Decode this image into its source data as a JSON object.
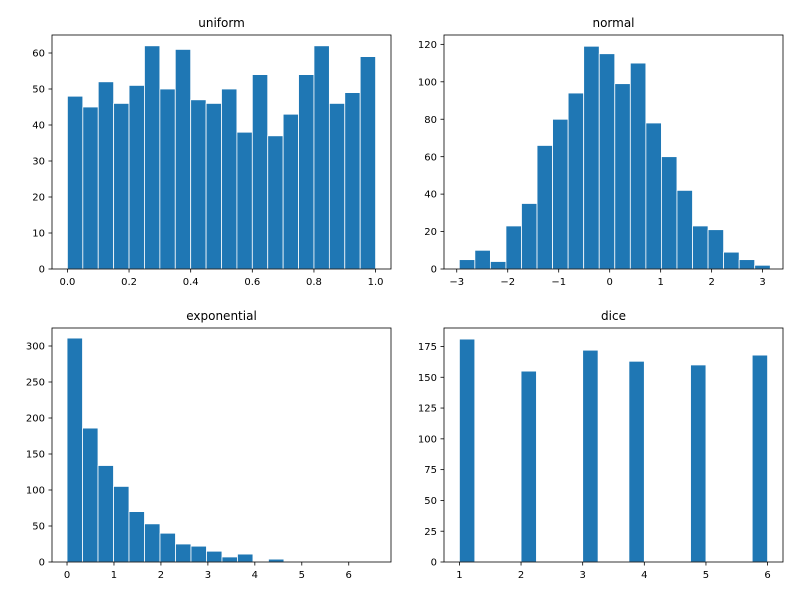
{
  "chart_data": [
    {
      "type": "bar",
      "title": "uniform",
      "xlim": [
        -0.05,
        1.05
      ],
      "ylim": [
        0,
        65
      ],
      "xticks": [
        0.0,
        0.2,
        0.4,
        0.6,
        0.8,
        1.0
      ],
      "xtick_labels": [
        "0.0",
        "0.2",
        "0.4",
        "0.6",
        "0.8",
        "1.0"
      ],
      "yticks": [
        0,
        10,
        20,
        30,
        40,
        50,
        60
      ],
      "ytick_labels": [
        "0",
        "10",
        "20",
        "30",
        "40",
        "50",
        "60"
      ],
      "bin_range": [
        0.0,
        1.0
      ],
      "counts": [
        48,
        45,
        52,
        46,
        51,
        62,
        50,
        61,
        47,
        46,
        50,
        38,
        54,
        37,
        43,
        54,
        62,
        46,
        49,
        59
      ],
      "color": "#1f77b4",
      "edgecolor": "#ffffff",
      "grid": false
    },
    {
      "type": "bar",
      "title": "normal",
      "xlim": [
        -3.25,
        3.4
      ],
      "ylim": [
        0,
        125
      ],
      "xticks": [
        -3,
        -2,
        -1,
        0,
        1,
        2,
        3
      ],
      "xtick_labels": [
        "−3",
        "−2",
        "−1",
        "0",
        "1",
        "2",
        "3"
      ],
      "yticks": [
        0,
        20,
        40,
        60,
        80,
        100,
        120
      ],
      "ytick_labels": [
        "0",
        "20",
        "40",
        "60",
        "80",
        "100",
        "120"
      ],
      "bin_range": [
        -2.95,
        3.15
      ],
      "counts": [
        5,
        10,
        4,
        23,
        35,
        66,
        80,
        94,
        119,
        115,
        99,
        110,
        78,
        60,
        42,
        23,
        21,
        9,
        5,
        2
      ],
      "color": "#1f77b4",
      "edgecolor": "#ffffff",
      "grid": false
    },
    {
      "type": "bar",
      "title": "exponential",
      "xlim": [
        -0.32,
        6.9
      ],
      "ylim": [
        0,
        325
      ],
      "xticks": [
        0,
        1,
        2,
        3,
        4,
        5,
        6
      ],
      "xtick_labels": [
        "0",
        "1",
        "2",
        "3",
        "4",
        "5",
        "6"
      ],
      "yticks": [
        0,
        50,
        100,
        150,
        200,
        250,
        300
      ],
      "ytick_labels": [
        "0",
        "50",
        "100",
        "150",
        "200",
        "250",
        "300"
      ],
      "bin_range": [
        0.0,
        6.6
      ],
      "counts": [
        311,
        186,
        134,
        105,
        70,
        53,
        40,
        25,
        22,
        15,
        7,
        11,
        0,
        4,
        0,
        0,
        1,
        0,
        0,
        1
      ],
      "color": "#1f77b4",
      "edgecolor": "#ffffff",
      "grid": false
    },
    {
      "type": "bar",
      "title": "dice",
      "xlim": [
        0.75,
        6.25
      ],
      "ylim": [
        0,
        190
      ],
      "xticks": [
        1,
        2,
        3,
        4,
        5,
        6
      ],
      "xtick_labels": [
        "1",
        "2",
        "3",
        "4",
        "5",
        "6"
      ],
      "yticks": [
        0,
        25,
        50,
        75,
        100,
        125,
        150,
        175
      ],
      "ytick_labels": [
        "0",
        "25",
        "50",
        "75",
        "100",
        "125",
        "150",
        "175"
      ],
      "bin_range": [
        1.0,
        6.0
      ],
      "counts": [
        181,
        0,
        0,
        0,
        155,
        0,
        0,
        0,
        172,
        0,
        0,
        163,
        0,
        0,
        0,
        160,
        0,
        0,
        0,
        168
      ],
      "color": "#1f77b4",
      "edgecolor": "#ffffff",
      "grid": false
    }
  ]
}
